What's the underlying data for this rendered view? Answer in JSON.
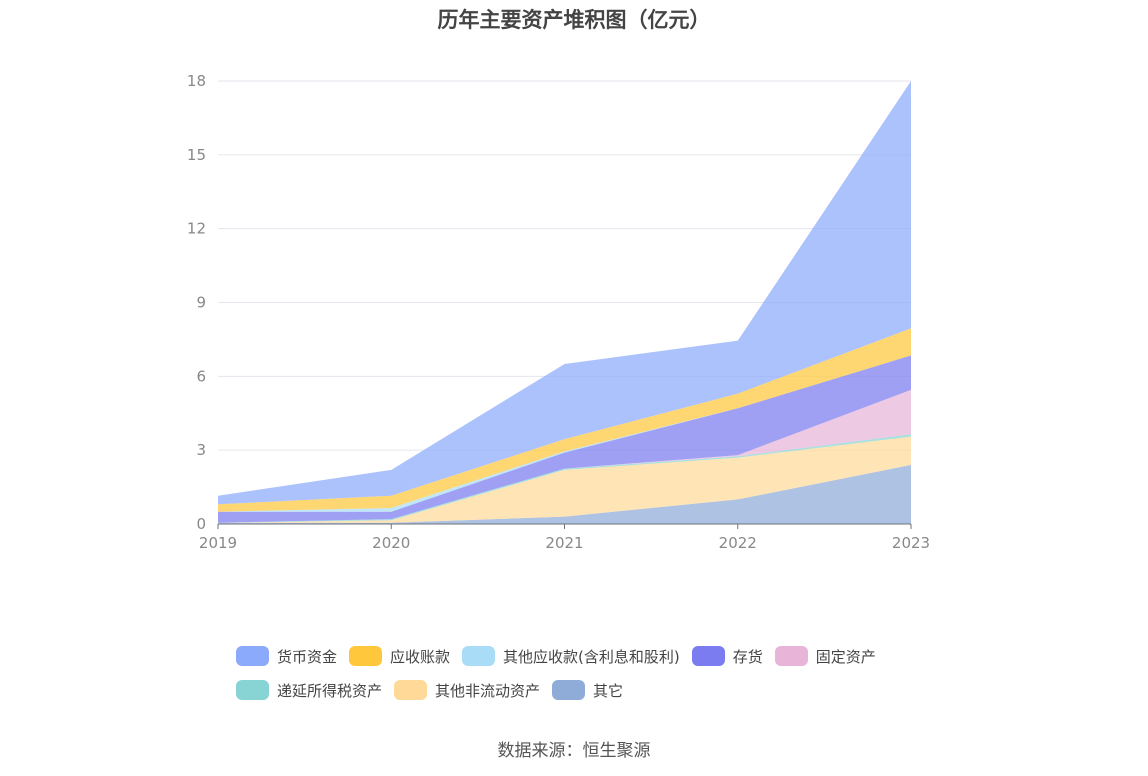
{
  "chart_data": {
    "type": "area",
    "stacked": true,
    "title": "历年主要资产堆积图（亿元）",
    "x": [
      "2019",
      "2020",
      "2021",
      "2022",
      "2023"
    ],
    "ylim": [
      0,
      18
    ],
    "yticks": [
      "0",
      "3",
      "6",
      "9",
      "12",
      "15",
      "18"
    ],
    "grid": true,
    "legend_position": "bottom",
    "series": [
      {
        "name": "其它",
        "color": "#8facd8",
        "values": [
          0.05,
          0.05,
          0.3,
          1.0,
          2.4
        ]
      },
      {
        "name": "其他非流动资产",
        "color": "#ffd998",
        "values": [
          0.0,
          0.1,
          1.9,
          1.7,
          1.15
        ]
      },
      {
        "name": "递延所得税资产",
        "color": "#88d4d4",
        "values": [
          0.0,
          0.05,
          0.05,
          0.05,
          0.1
        ]
      },
      {
        "name": "固定资产",
        "color": "#e8b4d8",
        "values": [
          0.0,
          0.0,
          0.0,
          0.05,
          1.8
        ]
      },
      {
        "name": "存货",
        "color": "#7a7cf0",
        "values": [
          0.45,
          0.3,
          0.65,
          1.9,
          1.4
        ]
      },
      {
        "name": "其他应收款(含利息和股利)",
        "color": "#a9dcf7",
        "values": [
          0.0,
          0.15,
          0.05,
          0.0,
          0.0
        ]
      },
      {
        "name": "应收账款",
        "color": "#ffc73c",
        "values": [
          0.3,
          0.5,
          0.5,
          0.6,
          1.1
        ]
      },
      {
        "name": "货币资金",
        "color": "#8caafc",
        "values": [
          0.35,
          1.05,
          3.05,
          2.15,
          10.05
        ]
      }
    ]
  },
  "legend": {
    "row1": [
      {
        "label": "货币资金",
        "color": "#8caafc"
      },
      {
        "label": "应收账款",
        "color": "#ffc73c"
      },
      {
        "label": "其他应收款(含利息和股利)",
        "color": "#a9dcf7"
      },
      {
        "label": "存货",
        "color": "#7a7cf0"
      },
      {
        "label": "固定资产",
        "color": "#e8b4d8"
      }
    ],
    "row2": [
      {
        "label": "递延所得税资产",
        "color": "#88d4d4"
      },
      {
        "label": "其他非流动资产",
        "color": "#ffd998"
      },
      {
        "label": "其它",
        "color": "#8facd8"
      }
    ]
  },
  "source": "数据来源：恒生聚源"
}
